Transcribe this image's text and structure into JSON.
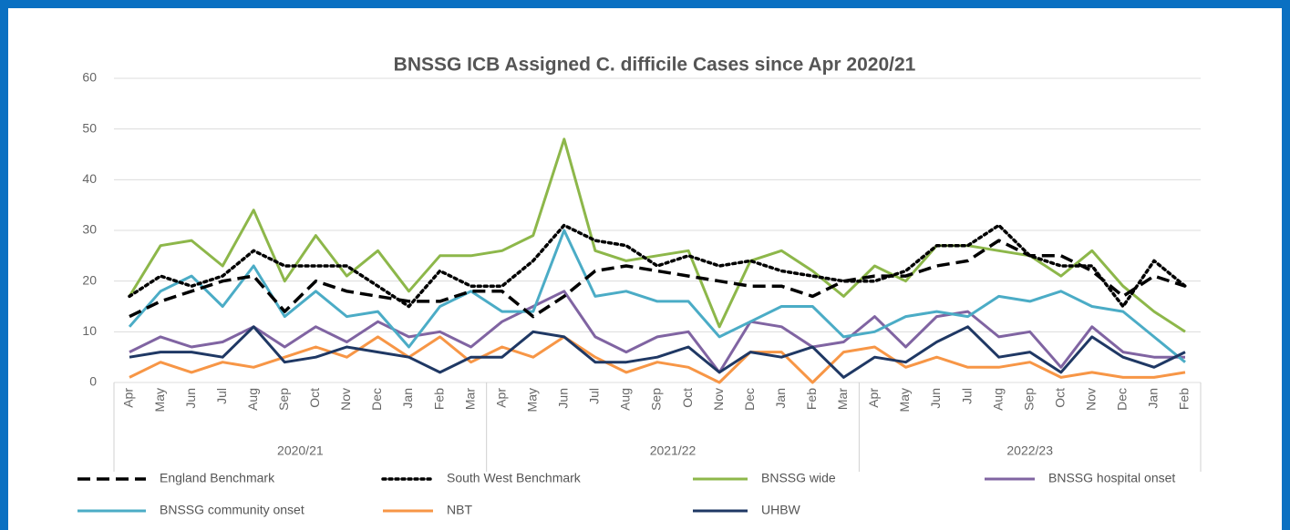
{
  "chart_data": {
    "type": "line",
    "title": "BNSSG ICB Assigned C. difficile Cases since Apr 2020/21",
    "groups": [
      {
        "label": "2020/21",
        "categories": [
          "Apr",
          "May",
          "Jun",
          "Jul",
          "Aug",
          "Sep",
          "Oct",
          "Nov",
          "Dec",
          "Jan",
          "Feb",
          "Mar"
        ]
      },
      {
        "label": "2021/22",
        "categories": [
          "Apr",
          "May",
          "Jun",
          "Jul",
          "Aug",
          "Sep",
          "Oct",
          "Nov",
          "Dec",
          "Jan",
          "Feb",
          "Mar"
        ]
      },
      {
        "label": "2022/23",
        "categories": [
          "Apr",
          "May",
          "Jun",
          "Jul",
          "Aug",
          "Sep",
          "Oct",
          "Nov",
          "Dec",
          "Jan",
          "Feb"
        ]
      }
    ],
    "ylim": [
      0,
      60
    ],
    "yticks": [
      0,
      10,
      20,
      30,
      40,
      50,
      60
    ],
    "grid": true,
    "legend": "bottom",
    "series": [
      {
        "name": "England Benchmark",
        "color": "#000000",
        "style": "dashed",
        "values": [
          13,
          16,
          18,
          20,
          21,
          14,
          20,
          18,
          17,
          16,
          16,
          18,
          18,
          13,
          17,
          22,
          23,
          22,
          21,
          20,
          19,
          19,
          17,
          20,
          21,
          21,
          23,
          24,
          28,
          25,
          25,
          22,
          17,
          21,
          19
        ]
      },
      {
        "name": "South West Benchmark",
        "color": "#000000",
        "style": "dotted",
        "values": [
          17,
          21,
          19,
          21,
          26,
          23,
          23,
          23,
          19,
          15,
          22,
          19,
          19,
          24,
          31,
          28,
          27,
          23,
          25,
          23,
          24,
          22,
          21,
          20,
          20,
          22,
          27,
          27,
          31,
          25,
          23,
          23,
          15,
          24,
          19
        ]
      },
      {
        "name": "BNSSG wide",
        "color": "#8db74a",
        "style": "solid",
        "values": [
          17,
          27,
          28,
          23,
          34,
          20,
          29,
          21,
          26,
          18,
          25,
          25,
          26,
          29,
          48,
          26,
          24,
          25,
          26,
          11,
          24,
          26,
          22,
          17,
          23,
          20,
          27,
          27,
          26,
          25,
          21,
          26,
          19,
          14,
          10
        ]
      },
      {
        "name": "BNSSG hospital onset",
        "color": "#8064a2",
        "style": "solid",
        "values": [
          6,
          9,
          7,
          8,
          11,
          7,
          11,
          8,
          12,
          9,
          10,
          7,
          12,
          15,
          18,
          9,
          6,
          9,
          10,
          2,
          12,
          11,
          7,
          8,
          13,
          7,
          13,
          14,
          9,
          10,
          3,
          11,
          6,
          5,
          5
        ]
      },
      {
        "name": "BNSSG community onset",
        "color": "#4bacc6",
        "style": "solid",
        "values": [
          11,
          18,
          21,
          15,
          23,
          13,
          18,
          13,
          14,
          7,
          15,
          18,
          14,
          14,
          30,
          17,
          18,
          16,
          16,
          9,
          12,
          15,
          15,
          9,
          10,
          13,
          14,
          13,
          17,
          16,
          18,
          15,
          14,
          9,
          4
        ]
      },
      {
        "name": "NBT",
        "color": "#f79646",
        "style": "solid",
        "values": [
          1,
          4,
          2,
          4,
          3,
          5,
          7,
          5,
          9,
          5,
          9,
          4,
          7,
          5,
          9,
          5,
          2,
          4,
          3,
          0,
          6,
          6,
          0,
          6,
          7,
          3,
          5,
          3,
          3,
          4,
          1,
          2,
          1,
          1,
          2
        ]
      },
      {
        "name": "UHBW",
        "color": "#1f3864",
        "style": "solid",
        "values": [
          5,
          6,
          6,
          5,
          11,
          4,
          5,
          7,
          6,
          5,
          2,
          5,
          5,
          10,
          9,
          4,
          4,
          5,
          7,
          2,
          6,
          5,
          7,
          1,
          5,
          4,
          8,
          11,
          5,
          6,
          2,
          9,
          5,
          3,
          6
        ]
      }
    ]
  }
}
